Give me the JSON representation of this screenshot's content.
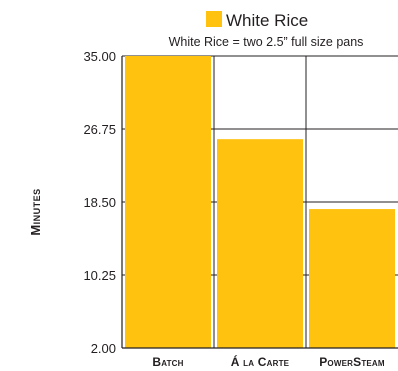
{
  "chart_data": {
    "type": "bar",
    "categories": [
      "Batch",
      "Á la Carte",
      "PowerSteam"
    ],
    "series": [
      {
        "name": "White Rice",
        "values": [
          35.0,
          25.6,
          17.7
        ]
      }
    ],
    "subtitle": "White Rice = two 2.5” full size pans",
    "ylabel": "Minutes",
    "xlabel": "",
    "ylim": [
      2.0,
      35.0
    ],
    "yticks": [
      "35.00",
      "26.75",
      "18.50",
      "10.25",
      "2.00"
    ],
    "ytick_values": [
      35.0,
      26.75,
      18.5,
      10.25,
      2.0
    ],
    "grid": true,
    "legend_position": "top",
    "colors": {
      "bar": "#ffc20e",
      "grid": "#231f20",
      "text": "#231f20"
    }
  }
}
